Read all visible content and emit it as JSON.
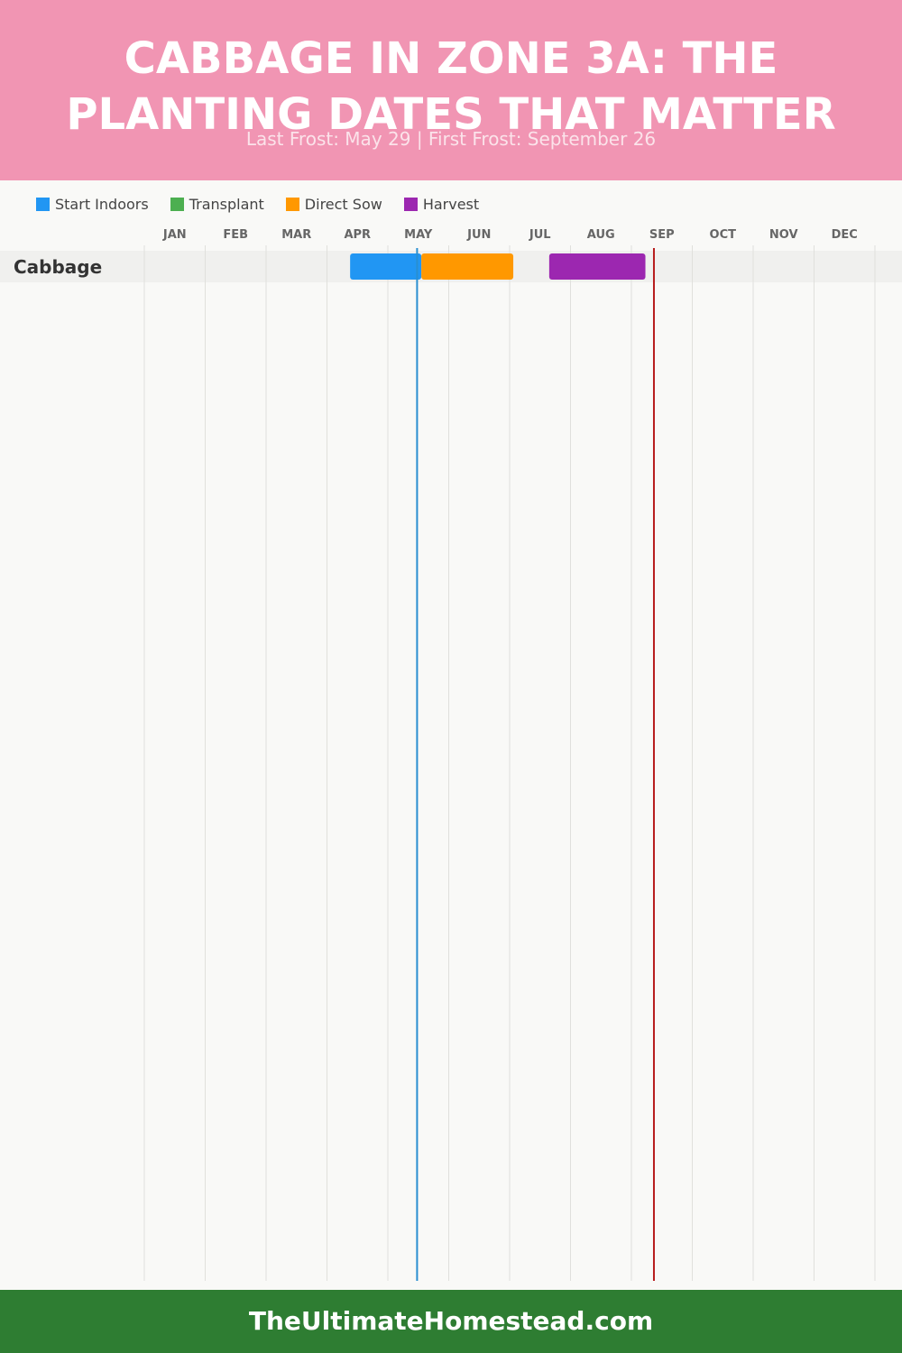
{
  "header": {
    "title": "CABBAGE IN ZONE 3A: THE PLANTING DATES THAT MATTER",
    "subtitle": "Last Frost: May 29 | First Frost: September 26"
  },
  "legend": [
    {
      "label": "Start Indoors",
      "color": "#2196f3"
    },
    {
      "label": "Transplant",
      "color": "#4caf50"
    },
    {
      "label": "Direct Sow",
      "color": "#ff9800"
    },
    {
      "label": "Harvest",
      "color": "#9c27b0"
    }
  ],
  "footer": {
    "text": "TheUltimateHomestead.com"
  },
  "chart_data": {
    "type": "gantt",
    "months": [
      "JAN",
      "FEB",
      "MAR",
      "APR",
      "MAY",
      "JUN",
      "JUL",
      "AUG",
      "SEP",
      "OCT",
      "NOV",
      "DEC"
    ],
    "markers": [
      {
        "label": "Last Frost",
        "month_value": 5.48,
        "color": "#2a8fd0"
      },
      {
        "label": "First Frost",
        "month_value": 9.37,
        "color": "#b71c1c"
      }
    ],
    "rows": [
      {
        "crop": "Cabbage",
        "bars": [
          {
            "phase": "Start Indoors",
            "start": 4.38,
            "end": 5.55,
            "color": "#2196f3"
          },
          {
            "phase": "Direct Sow",
            "start": 5.55,
            "end": 7.06,
            "color": "#ff9800"
          },
          {
            "phase": "Harvest",
            "start": 7.65,
            "end": 9.23,
            "color": "#9c27b0"
          }
        ]
      }
    ],
    "grid": true
  }
}
